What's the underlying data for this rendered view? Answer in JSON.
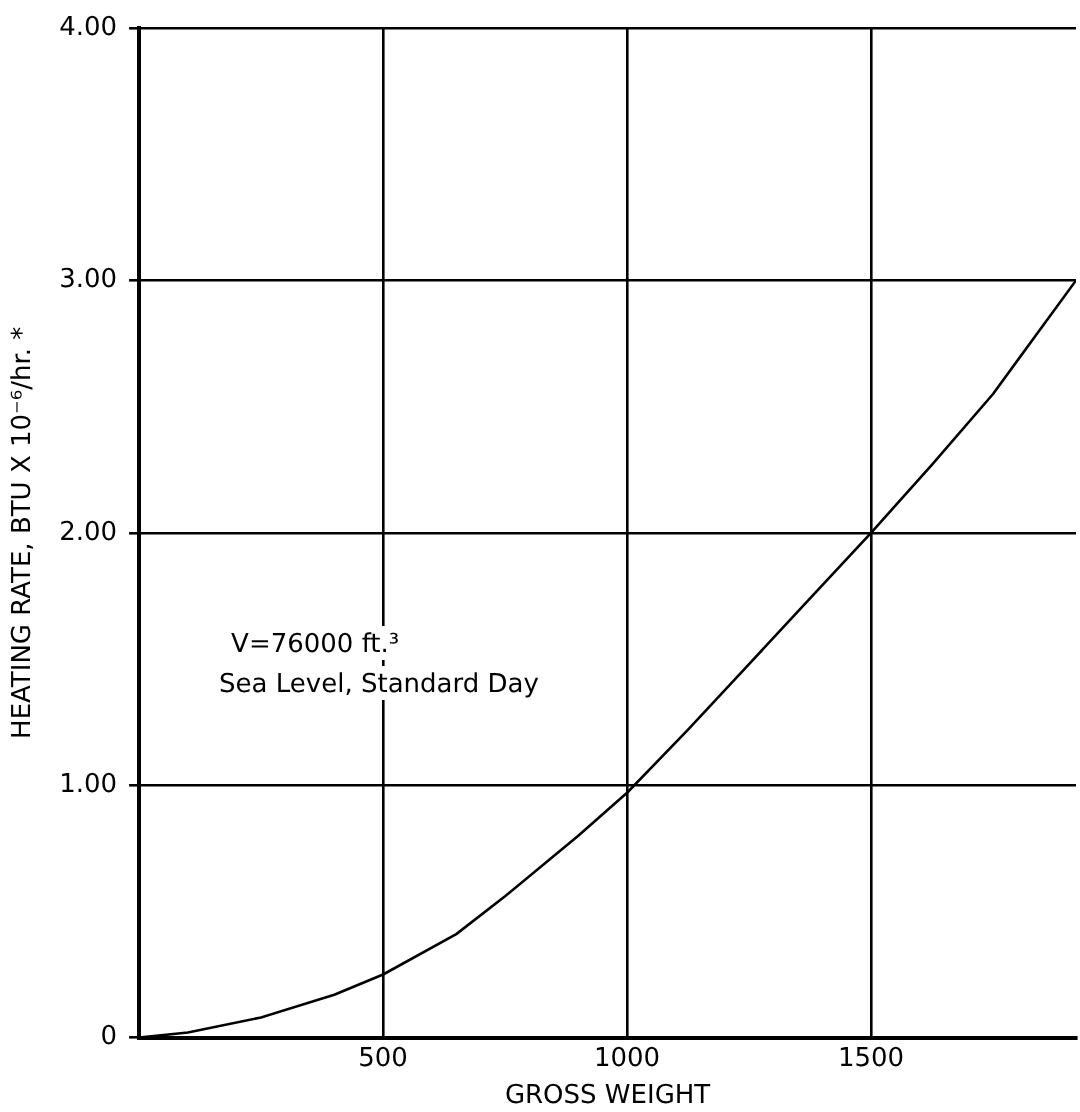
{
  "chart_data": {
    "type": "line",
    "xlabel": "GROSS WEIGHT",
    "ylabel": "HEATING RATE, BTU X 10⁻⁶/hr. *",
    "x": [
      0,
      100,
      250,
      400,
      500,
      650,
      750,
      900,
      1000,
      1125,
      1250,
      1375,
      1500,
      1625,
      1750,
      1920
    ],
    "series": [
      {
        "color": "#000000",
        "values": [
          0,
          0.02,
          0.08,
          0.17,
          0.25,
          0.41,
          0.56,
          0.8,
          0.97,
          1.22,
          1.48,
          1.74,
          2.0,
          2.27,
          2.55,
          3.0
        ]
      }
    ],
    "xlim": [
      0,
      1920
    ],
    "xticks": [
      500,
      1000,
      1500
    ],
    "ylim": [
      0,
      4
    ],
    "yticks": [
      {
        "value": 0,
        "label": "0"
      },
      {
        "value": 1,
        "label": "1.00"
      },
      {
        "value": 2,
        "label": "2.00"
      },
      {
        "value": 3,
        "label": "3.00"
      },
      {
        "value": 4,
        "label": "4.00"
      }
    ],
    "grid": true,
    "marker": "none",
    "line_style": "solid",
    "annotations": [
      "V=76000 ft.³",
      "Sea Level, Standard Day"
    ]
  }
}
